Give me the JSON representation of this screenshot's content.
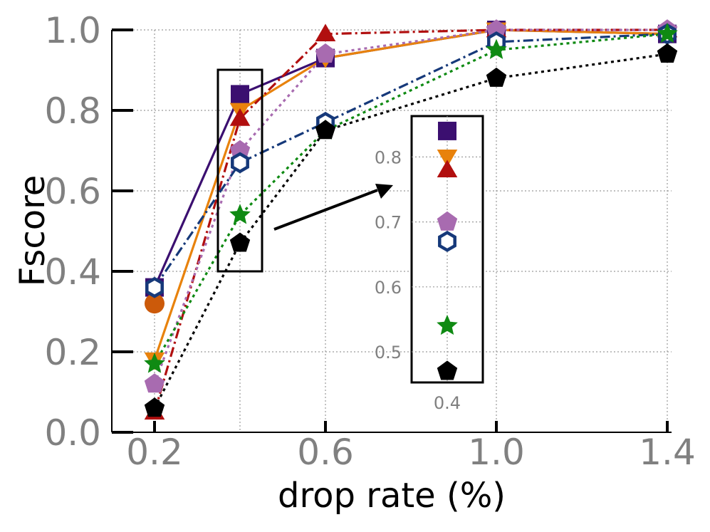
{
  "chart_data": {
    "type": "line",
    "title": "",
    "xlabel": "drop rate (%)",
    "ylabel": "Fscore",
    "x": [
      0.2,
      0.4,
      0.6,
      1.0,
      1.4
    ],
    "x_tick_labels": [
      "0.2",
      "0.6",
      "1.0",
      "1.4"
    ],
    "y_tick_labels": [
      "0.0",
      "0.2",
      "0.4",
      "0.6",
      "0.8",
      "1.0"
    ],
    "xlim": [
      0.1,
      1.4
    ],
    "ylim": [
      0.0,
      1.0
    ],
    "grid": true,
    "series": [
      {
        "marker": "square",
        "color": "#3b0f70",
        "dash": "solid",
        "values": [
          0.36,
          0.84,
          0.93,
          1.0,
          0.99
        ]
      },
      {
        "marker": "circle",
        "color": "#cc5a0a",
        "dash": "solid",
        "values": [
          0.32,
          null,
          null,
          null,
          null
        ]
      },
      {
        "marker": "triangle-down",
        "color": "#e8820c",
        "dash": "solid",
        "values": [
          0.18,
          0.8,
          0.93,
          1.0,
          0.99
        ]
      },
      {
        "marker": "triangle-up",
        "color": "#b10f0f",
        "dash": "dashdot",
        "values": [
          0.05,
          0.78,
          0.99,
          1.0,
          1.0
        ]
      },
      {
        "marker": "pentagon",
        "color": "#a86bb0",
        "dash": "dotted",
        "values": [
          0.12,
          0.7,
          0.94,
          1.0,
          1.0
        ]
      },
      {
        "marker": "hexagon-open",
        "color": "#16397a",
        "dash": "dashdot",
        "values": [
          0.36,
          0.67,
          0.77,
          0.97,
          0.99
        ]
      },
      {
        "marker": "star",
        "color": "#0f8a13",
        "dash": "dotted",
        "values": [
          0.17,
          0.54,
          0.75,
          0.95,
          0.99
        ]
      },
      {
        "marker": "pentagon",
        "color": "#000000",
        "dash": "dotted",
        "values": [
          0.06,
          0.47,
          0.75,
          0.88,
          0.94
        ]
      }
    ],
    "inset": {
      "x": 0.4,
      "x_tick_label": "0.4",
      "ylim": [
        0.45,
        0.85
      ],
      "y_tick_labels": [
        "0.5",
        "0.6",
        "0.7",
        "0.8"
      ],
      "y_ticks": [
        0.5,
        0.6,
        0.7,
        0.8
      ]
    }
  }
}
